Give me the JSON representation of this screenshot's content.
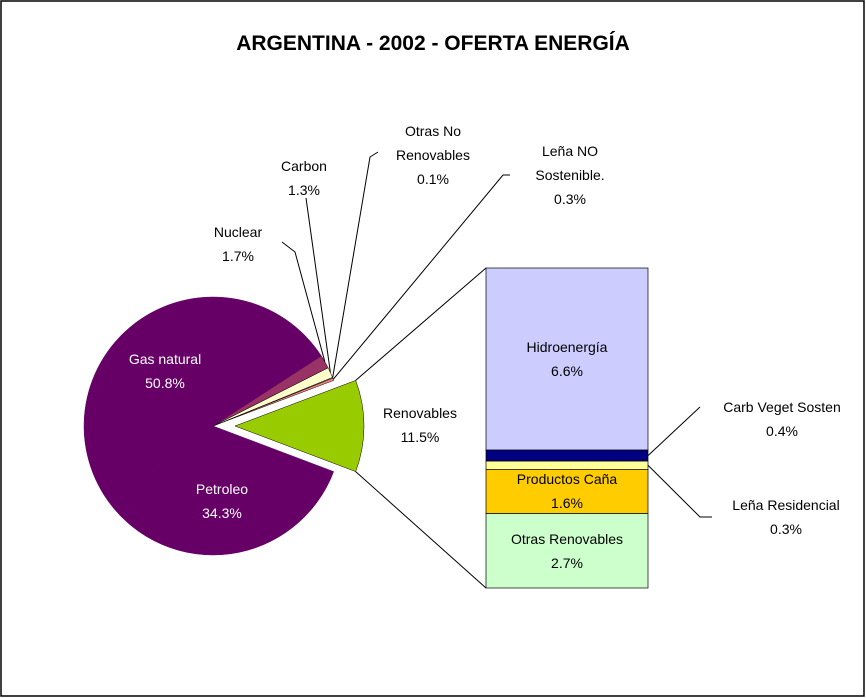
{
  "chart_data": {
    "type": "bar-of-pie",
    "title": "ARGENTINA - 2002 - OFERTA ENERGÍA",
    "categories": [
      "Renovables",
      "Leña NO Sostenible.",
      "Otras No Renovables",
      "Carbon",
      "Nuclear",
      "Gas natural",
      "Petroleo"
    ],
    "values": [
      11.5,
      0.3,
      0.1,
      1.3,
      1.7,
      50.8,
      34.3
    ],
    "value_labels": [
      "11.5%",
      "0.3%",
      "0.1%",
      "1.3%",
      "1.7%",
      "50.8%",
      "34.3%"
    ],
    "colors": [
      "#99CC00",
      "#FF8080",
      "#CCFFFF",
      "#FFFFCC",
      "#993366",
      "#660066",
      "#660066"
    ],
    "exploded": "Renovables",
    "bar": {
      "categories": [
        "Hidroenergía",
        "Carb Veget Sosten",
        "Leña Residencial",
        "Productos Caña",
        "Otras Renovables"
      ],
      "values": [
        6.6,
        0.4,
        0.3,
        1.6,
        2.7
      ],
      "value_labels": [
        "6.6%",
        "0.4%",
        "0.3%",
        "1.6%",
        "2.7%"
      ],
      "colors": [
        "#CCCCFF",
        "#000080",
        "#FFFF99",
        "#FFCC00",
        "#CCFFCC"
      ]
    }
  }
}
